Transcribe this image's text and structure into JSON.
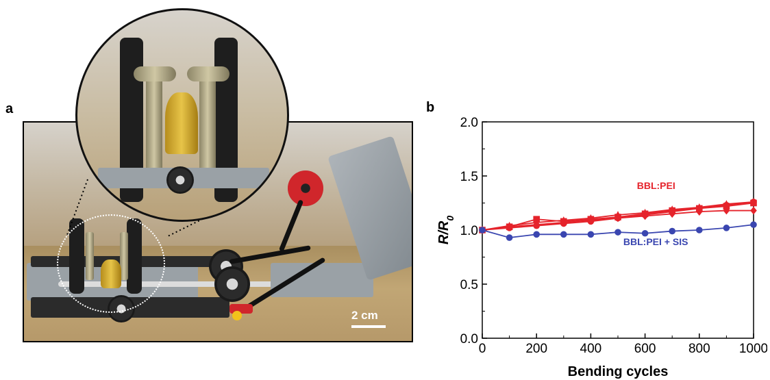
{
  "panel_a": {
    "letter": "a",
    "scale_bar_label": "2 cm"
  },
  "panel_b": {
    "letter": "b"
  },
  "colors": {
    "bbl_pei": "#e5232b",
    "bbl_pei_sis": "#3a46b0",
    "axis": "#000000"
  },
  "chart_data": {
    "type": "line",
    "xlabel": "Bending cycles",
    "ylabel": "R/R0",
    "xlim": [
      0,
      1000
    ],
    "ylim": [
      0.0,
      2.0
    ],
    "xticks": [
      0,
      200,
      400,
      600,
      800,
      1000
    ],
    "yticks": [
      0.0,
      0.5,
      1.0,
      1.5,
      2.0
    ],
    "grid": false,
    "annotations": [
      {
        "text": "BBL:PEI",
        "series_color": "#e5232b"
      },
      {
        "text": "BBL:PEI + SIS",
        "series_color": "#3a46b0"
      }
    ],
    "series": [
      {
        "group": "BBL:PEI",
        "color": "#e5232b",
        "marker": "diamond",
        "x": [
          0,
          100,
          200,
          300,
          400,
          500,
          600,
          700,
          800,
          900,
          1000
        ],
        "values": [
          1.0,
          1.03,
          1.05,
          1.07,
          1.09,
          1.11,
          1.13,
          1.15,
          1.17,
          1.18,
          1.18
        ]
      },
      {
        "group": "BBL:PEI",
        "color": "#e5232b",
        "marker": "circle",
        "x": [
          0,
          100,
          200,
          300,
          400,
          500,
          600,
          700,
          800,
          900,
          1000
        ],
        "values": [
          1.0,
          1.02,
          1.04,
          1.06,
          1.08,
          1.11,
          1.14,
          1.17,
          1.2,
          1.23,
          1.26
        ]
      },
      {
        "group": "BBL:PEI",
        "color": "#e5232b",
        "marker": "triangle",
        "x": [
          0,
          100,
          200,
          300,
          400,
          500,
          600,
          700,
          800,
          900,
          1000
        ],
        "values": [
          1.0,
          1.04,
          1.07,
          1.09,
          1.11,
          1.14,
          1.16,
          1.19,
          1.21,
          1.24,
          1.26
        ]
      },
      {
        "group": "BBL:PEI",
        "color": "#e5232b",
        "marker": "square",
        "x": [
          0,
          100,
          200,
          300,
          400,
          500,
          600,
          700,
          800,
          900,
          1000
        ],
        "values": [
          1.0,
          1.03,
          1.1,
          1.08,
          1.1,
          1.12,
          1.15,
          1.18,
          1.2,
          1.22,
          1.25
        ]
      },
      {
        "group": "BBL:PEI + SIS",
        "color": "#3a46b0",
        "marker": "circle",
        "x": [
          0,
          100,
          200,
          300,
          400,
          500,
          600,
          700,
          800,
          900,
          1000
        ],
        "values": [
          1.0,
          0.93,
          0.96,
          0.96,
          0.96,
          0.98,
          0.97,
          0.99,
          1.0,
          1.02,
          1.05
        ]
      }
    ]
  }
}
